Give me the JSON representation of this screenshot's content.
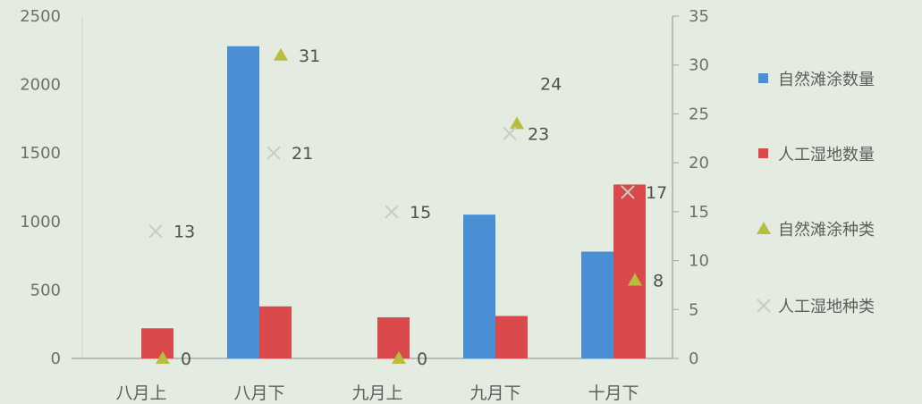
{
  "chart_data": {
    "type": "bar",
    "categories": [
      "八月上",
      "八月下",
      "九月上",
      "九月下",
      "十月下"
    ],
    "y_left": {
      "ylim": [
        0,
        2500
      ],
      "ticks": [
        "0",
        "500",
        "1000",
        "1500",
        "2000",
        "2500"
      ]
    },
    "y_right": {
      "ylim": [
        0,
        35
      ],
      "ticks": [
        "0",
        "5",
        "10",
        "15",
        "20",
        "25",
        "30",
        "35"
      ]
    },
    "series": [
      {
        "name": "自然滩涂数量",
        "kind": "bar",
        "axis": "left",
        "color": "#4a8fd3",
        "marker": "square",
        "values": [
          0,
          2280,
          0,
          1050,
          780
        ]
      },
      {
        "name": "人工湿地数量",
        "kind": "bar",
        "axis": "left",
        "color": "#d9484a",
        "marker": "square",
        "values": [
          220,
          380,
          300,
          310,
          1270
        ]
      },
      {
        "name": "自然滩涂种类",
        "kind": "point",
        "axis": "right",
        "color": "#b8bd3e",
        "marker": "triangle",
        "values": [
          0,
          31,
          0,
          24,
          8
        ],
        "labels": [
          "0",
          "31",
          "0",
          "24",
          "8"
        ]
      },
      {
        "name": "人工湿地种类",
        "kind": "point",
        "axis": "right",
        "color": "#c6cdc6",
        "marker": "x",
        "values": [
          13,
          21,
          15,
          23,
          17
        ],
        "labels": [
          "13",
          "21",
          "15",
          "23",
          "17"
        ]
      }
    ],
    "gridlines": false,
    "legend_position": "right"
  }
}
